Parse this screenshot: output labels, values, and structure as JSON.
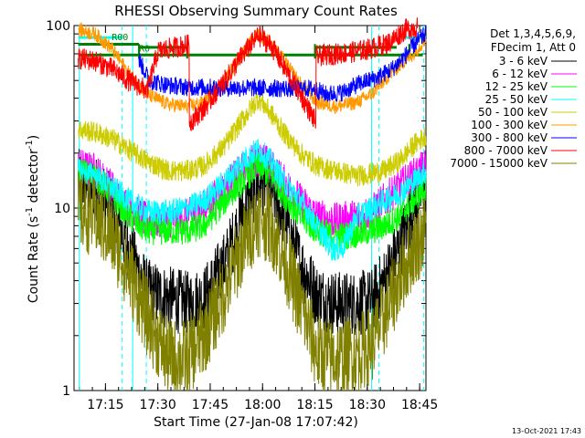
{
  "chart_data": {
    "type": "line",
    "title": "RHESSI Observing Summary Count Rates",
    "xlabel": "Start Time (27-Jan-08 17:07:42)",
    "ylabel_main": "Count Rate (s",
    "ylabel_sup": "-1",
    "ylabel_end": " detector",
    "ylabel_end_sup": "-1",
    "ylabel_close": ")",
    "yscale": "log",
    "ylim": [
      1,
      100
    ],
    "xlim_minutes": [
      17.1,
      18.78
    ],
    "y_ticks": [
      {
        "value": 1,
        "label": "1"
      },
      {
        "value": 10,
        "label": "10"
      },
      {
        "value": 100,
        "label": "100"
      }
    ],
    "x_ticks": [
      {
        "value": 17.25,
        "label": "17:15"
      },
      {
        "value": 17.5,
        "label": "17:30"
      },
      {
        "value": 17.75,
        "label": "17:45"
      },
      {
        "value": 18.0,
        "label": "18:00"
      },
      {
        "value": 18.25,
        "label": "18:15"
      },
      {
        "value": 18.5,
        "label": "18:30"
      },
      {
        "value": 18.75,
        "label": "18:45"
      }
    ],
    "legend_header": [
      "Det 1,3,4,5,6,9,",
      "FDecim 1, Att 0"
    ],
    "legend_position": "right",
    "flag_labels": [
      {
        "text": "R00",
        "x": 17.28,
        "y": 83
      },
      {
        "text": "R0",
        "x": 17.41,
        "y": 72
      }
    ],
    "footer_date": "13-Oct-2021 17:43",
    "vertical_lines": [
      {
        "x": 17.125,
        "color": "#00ffff",
        "style": "solid"
      },
      {
        "x": 17.33,
        "color": "#00ffff",
        "style": "dashed"
      },
      {
        "x": 17.38,
        "color": "#00ffff",
        "style": "solid"
      },
      {
        "x": 17.445,
        "color": "#00ffff",
        "style": "dashed"
      },
      {
        "x": 18.52,
        "color": "#00ffff",
        "style": "solid"
      },
      {
        "x": 18.555,
        "color": "#00ffff",
        "style": "dashed"
      },
      {
        "x": 18.77,
        "color": "#00ffff",
        "style": "dashed"
      }
    ],
    "flag_segments": [
      {
        "x0": 17.12,
        "x1": 18.765,
        "y": 69,
        "color": "#008000",
        "breaks": [
          17.41,
          17.64,
          18.25,
          18.7
        ]
      },
      {
        "x0": 17.12,
        "x1": 17.41,
        "y": 79,
        "color": "#008000"
      },
      {
        "x0": 17.41,
        "x1": 17.64,
        "y": 76,
        "color": "#008000"
      },
      {
        "x0": 18.25,
        "x1": 18.64,
        "y": 76,
        "color": "#008000"
      },
      {
        "x0": 17.12,
        "x1": 17.33,
        "y": 86,
        "color": "#00ffff"
      },
      {
        "x0": 18.64,
        "x1": 18.78,
        "y": 86,
        "color": "#00ffff"
      }
    ],
    "series": [
      {
        "name": "3 - 6 keV",
        "color": "#000000",
        "noise": 0.18,
        "points": [
          [
            17.12,
            14
          ],
          [
            17.2,
            13
          ],
          [
            17.28,
            10
          ],
          [
            17.36,
            6
          ],
          [
            17.45,
            3.5
          ],
          [
            17.55,
            3.2
          ],
          [
            17.64,
            3.0
          ],
          [
            17.72,
            3.2
          ],
          [
            17.82,
            5
          ],
          [
            17.9,
            9
          ],
          [
            17.98,
            14
          ],
          [
            18.04,
            13
          ],
          [
            18.1,
            9
          ],
          [
            18.18,
            5
          ],
          [
            18.26,
            3.3
          ],
          [
            18.35,
            3.0
          ],
          [
            18.45,
            3.0
          ],
          [
            18.52,
            3.1
          ],
          [
            18.58,
            4
          ],
          [
            18.65,
            6
          ],
          [
            18.72,
            10
          ],
          [
            18.78,
            14
          ]
        ]
      },
      {
        "name": "6 - 12 keV",
        "color": "#ff00ff",
        "noise": 0.1,
        "points": [
          [
            17.12,
            17
          ],
          [
            17.2,
            16
          ],
          [
            17.28,
            13
          ],
          [
            17.36,
            10
          ],
          [
            17.45,
            8.5
          ],
          [
            17.55,
            8.5
          ],
          [
            17.64,
            9
          ],
          [
            17.72,
            10
          ],
          [
            17.82,
            13
          ],
          [
            17.9,
            16
          ],
          [
            17.98,
            19
          ],
          [
            18.04,
            17
          ],
          [
            18.1,
            14
          ],
          [
            18.18,
            11
          ],
          [
            18.26,
            9
          ],
          [
            18.35,
            8.5
          ],
          [
            18.45,
            9
          ],
          [
            18.52,
            9.5
          ],
          [
            18.58,
            11
          ],
          [
            18.65,
            13
          ],
          [
            18.72,
            15
          ],
          [
            18.78,
            17
          ]
        ]
      },
      {
        "name": "12 - 25 keV",
        "color": "#00ff00",
        "noise": 0.08,
        "points": [
          [
            17.12,
            16
          ],
          [
            17.2,
            15
          ],
          [
            17.28,
            12
          ],
          [
            17.36,
            9
          ],
          [
            17.45,
            7.5
          ],
          [
            17.55,
            7.5
          ],
          [
            17.64,
            7.5
          ],
          [
            17.72,
            8
          ],
          [
            17.82,
            11
          ],
          [
            17.9,
            14
          ],
          [
            17.98,
            17
          ],
          [
            18.04,
            15
          ],
          [
            18.1,
            12
          ],
          [
            18.18,
            9
          ],
          [
            18.26,
            7.5
          ],
          [
            18.35,
            7
          ],
          [
            18.45,
            7.2
          ],
          [
            18.52,
            7.5
          ],
          [
            18.58,
            8
          ],
          [
            18.65,
            9
          ],
          [
            18.72,
            11
          ],
          [
            18.78,
            13
          ]
        ]
      },
      {
        "name": "25 - 50 keV",
        "color": "#00ffff",
        "noise": 0.07,
        "points": [
          [
            17.12,
            16
          ],
          [
            17.2,
            15
          ],
          [
            17.28,
            13
          ],
          [
            17.36,
            11
          ],
          [
            17.45,
            9.5
          ],
          [
            17.55,
            9.5
          ],
          [
            17.64,
            10
          ],
          [
            17.72,
            11
          ],
          [
            17.82,
            14
          ],
          [
            17.9,
            18
          ],
          [
            17.98,
            21
          ],
          [
            18.04,
            18
          ],
          [
            18.1,
            14
          ],
          [
            18.18,
            11
          ],
          [
            18.26,
            8
          ],
          [
            18.33,
            6
          ],
          [
            18.38,
            6
          ],
          [
            18.45,
            9
          ],
          [
            18.52,
            10
          ],
          [
            18.58,
            11
          ],
          [
            18.65,
            12
          ],
          [
            18.72,
            14
          ],
          [
            18.78,
            16
          ]
        ]
      },
      {
        "name": "50 - 100 keV",
        "color": "#cccc00",
        "noise": 0.06,
        "points": [
          [
            17.12,
            27
          ],
          [
            17.2,
            26
          ],
          [
            17.28,
            24
          ],
          [
            17.36,
            21
          ],
          [
            17.45,
            18
          ],
          [
            17.55,
            16
          ],
          [
            17.64,
            16
          ],
          [
            17.72,
            17
          ],
          [
            17.82,
            22
          ],
          [
            17.9,
            30
          ],
          [
            17.98,
            40
          ],
          [
            18.04,
            33
          ],
          [
            18.1,
            26
          ],
          [
            18.18,
            20
          ],
          [
            18.26,
            17
          ],
          [
            18.35,
            16
          ],
          [
            18.45,
            15
          ],
          [
            18.52,
            15.5
          ],
          [
            18.58,
            16
          ],
          [
            18.65,
            18
          ],
          [
            18.72,
            22
          ],
          [
            18.78,
            25
          ]
        ]
      },
      {
        "name": "100 - 300 keV",
        "color": "#ff9900",
        "noise": 0.04,
        "points": [
          [
            17.12,
            95
          ],
          [
            17.2,
            90
          ],
          [
            17.28,
            75
          ],
          [
            17.36,
            55
          ],
          [
            17.45,
            42
          ],
          [
            17.55,
            37
          ],
          [
            17.64,
            36
          ],
          [
            17.72,
            38
          ],
          [
            17.82,
            50
          ],
          [
            17.9,
            70
          ],
          [
            17.98,
            90
          ],
          [
            18.04,
            80
          ],
          [
            18.1,
            65
          ],
          [
            18.18,
            48
          ],
          [
            18.26,
            38
          ],
          [
            18.35,
            36
          ],
          [
            18.45,
            38
          ],
          [
            18.52,
            42
          ],
          [
            18.58,
            50
          ],
          [
            18.65,
            60
          ],
          [
            18.72,
            70
          ],
          [
            18.78,
            85
          ]
        ]
      },
      {
        "name": "300 - 800 keV",
        "color": "#0000ff",
        "noise": 0.05,
        "points": [
          [
            17.41,
            65
          ],
          [
            17.46,
            50
          ],
          [
            17.55,
            47
          ],
          [
            17.64,
            46
          ],
          [
            18.25,
            45
          ],
          [
            18.3,
            42
          ],
          [
            18.38,
            43
          ],
          [
            18.46,
            48
          ],
          [
            18.55,
            52
          ],
          [
            18.62,
            58
          ],
          [
            18.68,
            68
          ],
          [
            18.73,
            80
          ],
          [
            18.78,
            90
          ]
        ]
      },
      {
        "name": "800 - 7000 keV",
        "color": "#ff0000",
        "noise": 0.06,
        "points": [
          [
            17.12,
            66
          ],
          [
            17.2,
            64
          ],
          [
            17.28,
            58
          ],
          [
            17.36,
            50
          ],
          [
            17.45,
            44
          ],
          [
            17.5,
            72
          ],
          [
            17.58,
            76
          ],
          [
            17.64,
            78
          ],
          [
            17.66,
            30
          ],
          [
            17.72,
            35
          ],
          [
            17.82,
            50
          ],
          [
            17.9,
            68
          ],
          [
            17.98,
            88
          ],
          [
            18.04,
            78
          ],
          [
            18.1,
            60
          ],
          [
            18.18,
            42
          ],
          [
            18.25,
            30
          ],
          [
            18.26,
            68
          ],
          [
            18.35,
            70
          ],
          [
            18.45,
            72
          ],
          [
            18.52,
            75
          ],
          [
            18.6,
            80
          ],
          [
            18.68,
            95
          ],
          [
            18.74,
            98
          ]
        ]
      },
      {
        "name": "7000 - 15000 keV",
        "color": "#808000",
        "noise": 0.22,
        "points": [
          [
            17.12,
            9.5
          ],
          [
            17.2,
            9
          ],
          [
            17.28,
            7
          ],
          [
            17.36,
            4.5
          ],
          [
            17.45,
            2.5
          ],
          [
            17.55,
            1.5
          ],
          [
            17.64,
            1.5
          ],
          [
            17.72,
            2
          ],
          [
            17.82,
            3.5
          ],
          [
            17.9,
            6
          ],
          [
            17.98,
            9
          ],
          [
            18.04,
            8
          ],
          [
            18.1,
            5.5
          ],
          [
            18.18,
            3
          ],
          [
            18.26,
            1.6
          ],
          [
            18.35,
            1.5
          ],
          [
            18.45,
            1.6
          ],
          [
            18.52,
            1.8
          ],
          [
            18.58,
            2.5
          ],
          [
            18.65,
            4
          ],
          [
            18.72,
            6
          ],
          [
            18.78,
            7.5
          ]
        ]
      }
    ]
  }
}
